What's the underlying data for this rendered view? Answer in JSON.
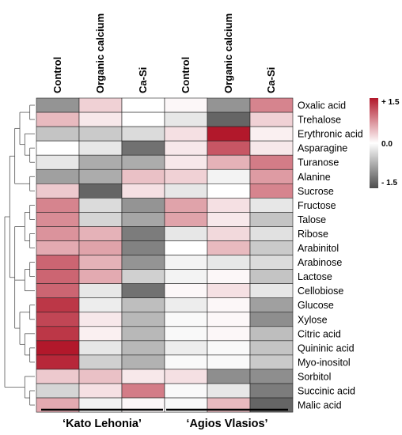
{
  "chart_data": {
    "type": "heatmap",
    "columns": [
      "Control",
      "Organic calcium",
      "Ca-Si",
      "Control",
      "Organic calcium",
      "Ca-Si"
    ],
    "groups": [
      {
        "label": "‘Kato Lehonia’",
        "columns": [
          0,
          1,
          2
        ]
      },
      {
        "label": "‘Agios Vlasios’",
        "columns": [
          3,
          4,
          5
        ]
      }
    ],
    "rows": [
      "Oxalic acid",
      "Trehalose",
      "Erythronic acid",
      "Asparagine",
      "Turanose",
      "Alanine",
      "Sucrose",
      "Fructose",
      "Talose",
      "Ribose",
      "Arabinitol",
      "Arabinose",
      "Lactose",
      "Cellobiose",
      "Glucose",
      "Xylose",
      "Citric acid",
      "Quininic acid",
      "Myo-inositol",
      "Sorbitol",
      "Succinic acid",
      "Malic acid"
    ],
    "values": [
      [
        -0.9,
        0.3,
        0.0,
        0.05,
        -0.9,
        0.8
      ],
      [
        0.45,
        0.15,
        0.0,
        -0.2,
        -1.3,
        0.3
      ],
      [
        -0.5,
        -0.45,
        -0.3,
        0.2,
        1.5,
        0.1
      ],
      [
        0.0,
        -0.2,
        -1.2,
        0.15,
        1.1,
        0.15
      ],
      [
        -0.2,
        -0.7,
        -0.7,
        0.15,
        0.5,
        0.85
      ],
      [
        -0.8,
        -0.7,
        0.4,
        0.3,
        -0.1,
        0.65
      ],
      [
        0.35,
        -1.3,
        0.2,
        -0.2,
        0.0,
        0.8
      ],
      [
        0.8,
        -0.3,
        -0.9,
        0.6,
        0.2,
        -0.2
      ],
      [
        0.75,
        -0.35,
        -0.75,
        0.6,
        0.15,
        -0.5
      ],
      [
        0.7,
        0.5,
        -1.1,
        -0.2,
        0.25,
        -0.25
      ],
      [
        0.55,
        0.6,
        -1.05,
        0.0,
        0.45,
        -0.45
      ],
      [
        1.0,
        0.5,
        -0.9,
        -0.1,
        -0.2,
        -0.3
      ],
      [
        1.0,
        0.55,
        -0.4,
        -0.1,
        0.05,
        -0.5
      ],
      [
        1.0,
        -0.2,
        -1.2,
        0.05,
        0.2,
        -0.2
      ],
      [
        1.3,
        -0.15,
        -0.55,
        -0.15,
        0.05,
        -0.8
      ],
      [
        1.2,
        0.15,
        -0.6,
        -0.05,
        0.05,
        -0.95
      ],
      [
        1.3,
        0.1,
        -0.6,
        -0.05,
        0.05,
        -0.55
      ],
      [
        1.5,
        -0.2,
        -0.6,
        -0.15,
        -0.05,
        -0.5
      ],
      [
        1.4,
        -0.4,
        -0.65,
        -0.05,
        -0.05,
        -0.45
      ],
      [
        0.35,
        0.4,
        0.15,
        0.2,
        -0.95,
        -0.95
      ],
      [
        -0.35,
        0.2,
        0.85,
        -0.05,
        -0.2,
        -1.1
      ],
      [
        0.55,
        -0.1,
        0.05,
        -0.05,
        0.45,
        -1.3
      ]
    ],
    "color_scale": {
      "min": -1.5,
      "mid": 0.0,
      "max": 1.5,
      "low_color": "#4d4d4d",
      "mid_color": "#ffffff",
      "high_color": "#b2182b"
    },
    "legend": {
      "ticks": [
        "+ 1.5",
        "0.0",
        "- 1.5"
      ],
      "placement": "right"
    },
    "dendrogram": "rows",
    "title": "",
    "xlabel": "",
    "ylabel": ""
  }
}
